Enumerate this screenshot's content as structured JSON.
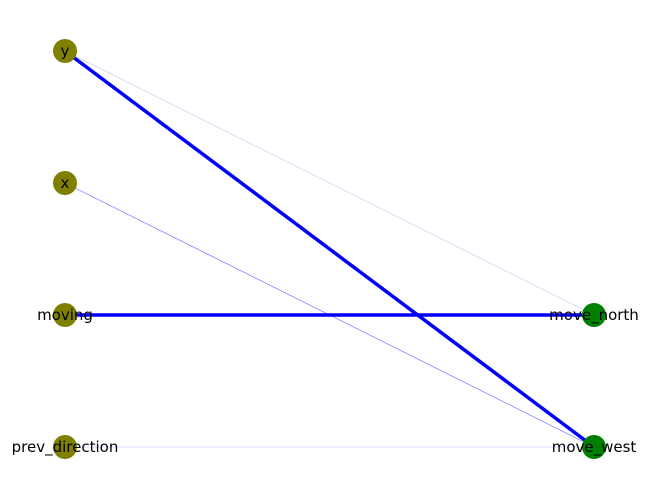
{
  "colors": {
    "input_node": "#808000",
    "output_node": "#008000",
    "edge": "#0000ff"
  },
  "nodes": [
    {
      "id": "y",
      "label": "y",
      "group": "input"
    },
    {
      "id": "x",
      "label": "x",
      "group": "input"
    },
    {
      "id": "moving",
      "label": "moving",
      "group": "input"
    },
    {
      "id": "prev_direction",
      "label": "prev_direction",
      "group": "input"
    },
    {
      "id": "move_north",
      "label": "move_north",
      "group": "output"
    },
    {
      "id": "move_west",
      "label": "move_west",
      "group": "output"
    }
  ],
  "edges": [
    {
      "source": "y",
      "target": "move_west",
      "weight": 1.0
    },
    {
      "source": "moving",
      "target": "move_north",
      "weight": 1.0
    },
    {
      "source": "x",
      "target": "move_west",
      "weight": 0.45
    },
    {
      "source": "y",
      "target": "move_north",
      "weight": 0.05
    },
    {
      "source": "prev_direction",
      "target": "move_west",
      "weight": 0.06
    }
  ]
}
